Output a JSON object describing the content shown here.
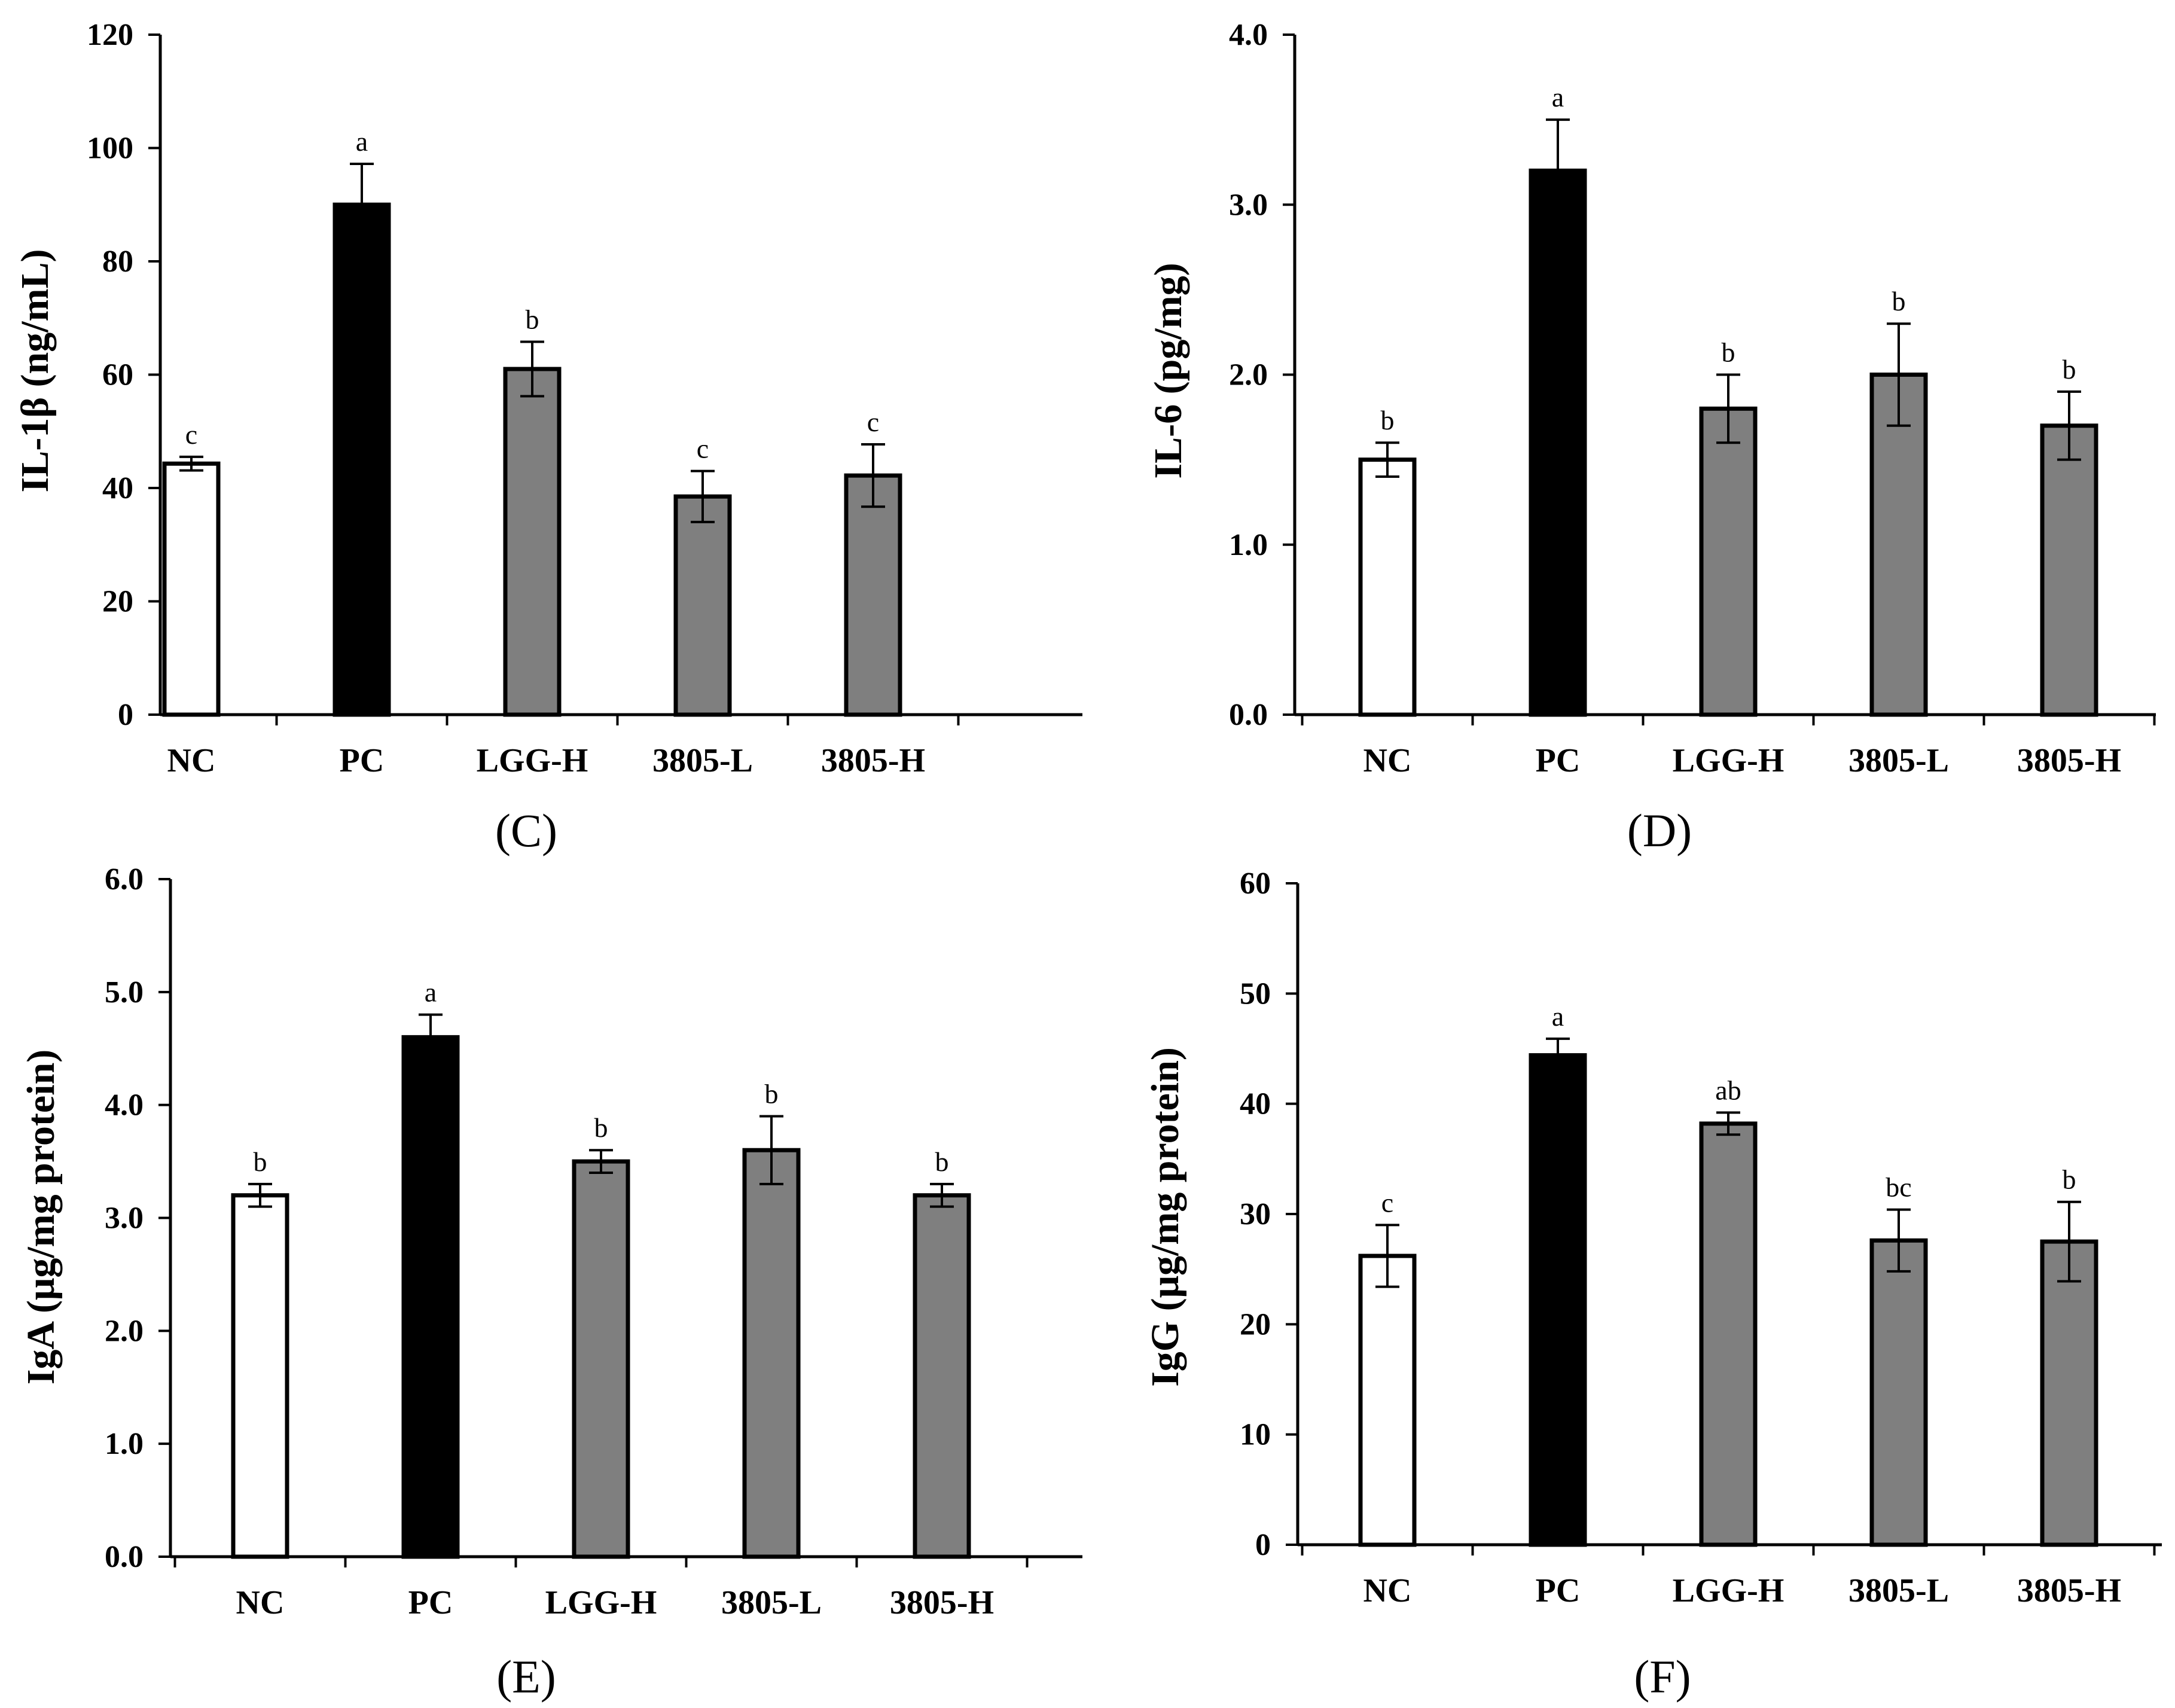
{
  "colors": {
    "control_fill": "#ffffff",
    "model_fill": "#000000",
    "treatment_fill": "#7f7f7f",
    "stroke": "#000000"
  },
  "chart_data": [
    {
      "type": "bar",
      "panel": "(C)",
      "ylabel": "IL-1β (ng/mL)",
      "ylim": [
        0,
        120
      ],
      "yticks": [
        "0",
        "20",
        "40",
        "60",
        "80",
        "100",
        "120"
      ],
      "categories": [
        "NC",
        "PC",
        "LGG-H",
        "3805-L",
        "3805-H"
      ],
      "values": [
        44.3,
        90,
        61,
        38.5,
        42.2
      ],
      "errors": [
        1.2,
        7.2,
        4.8,
        4.5,
        5.5
      ],
      "significance": [
        "c",
        "a",
        "b",
        "c",
        "c"
      ],
      "fills": [
        "control",
        "model",
        "treatment",
        "treatment",
        "treatment"
      ]
    },
    {
      "type": "bar",
      "panel": "(D)",
      "ylabel": "IL-6 (pg/mg)",
      "ylim": [
        0,
        4
      ],
      "yticks": [
        "0.0",
        "1.0",
        "2.0",
        "3.0",
        "4.0"
      ],
      "categories": [
        "NC",
        "PC",
        "LGG-H",
        "3805-L",
        "3805-H"
      ],
      "values": [
        1.5,
        3.2,
        1.8,
        2.0,
        1.7
      ],
      "errors": [
        0.1,
        0.3,
        0.2,
        0.3,
        0.2
      ],
      "significance": [
        "b",
        "a",
        "b",
        "b",
        "b"
      ],
      "fills": [
        "control",
        "model",
        "treatment",
        "treatment",
        "treatment"
      ]
    },
    {
      "type": "bar",
      "panel": "(E)",
      "ylabel": "IgA (μg/mg protein)",
      "ylim": [
        0,
        6
      ],
      "yticks": [
        "0.0",
        "1.0",
        "2.0",
        "3.0",
        "4.0",
        "5.0",
        "6.0"
      ],
      "categories": [
        "NC",
        "PC",
        "LGG-H",
        "3805-L",
        "3805-H"
      ],
      "values": [
        3.2,
        4.6,
        3.5,
        3.6,
        3.2
      ],
      "errors": [
        0.1,
        0.2,
        0.1,
        0.3,
        0.1
      ],
      "significance": [
        "b",
        "a",
        "b",
        "b",
        "b"
      ],
      "fills": [
        "control",
        "model",
        "treatment",
        "treatment",
        "treatment"
      ]
    },
    {
      "type": "bar",
      "panel": "(F)",
      "ylabel": "IgG (μg/mg protein)",
      "ylim": [
        0,
        60
      ],
      "yticks": [
        "0",
        "10",
        "20",
        "30",
        "40",
        "50",
        "60"
      ],
      "categories": [
        "NC",
        "PC",
        "LGG-H",
        "3805-L",
        "3805-H"
      ],
      "values": [
        26.2,
        44.4,
        38.2,
        27.6,
        27.5
      ],
      "errors": [
        2.8,
        1.5,
        1.0,
        2.8,
        3.6
      ],
      "significance": [
        "c",
        "a",
        "ab",
        "bc",
        "b"
      ],
      "fills": [
        "control",
        "model",
        "treatment",
        "treatment",
        "treatment"
      ]
    }
  ]
}
